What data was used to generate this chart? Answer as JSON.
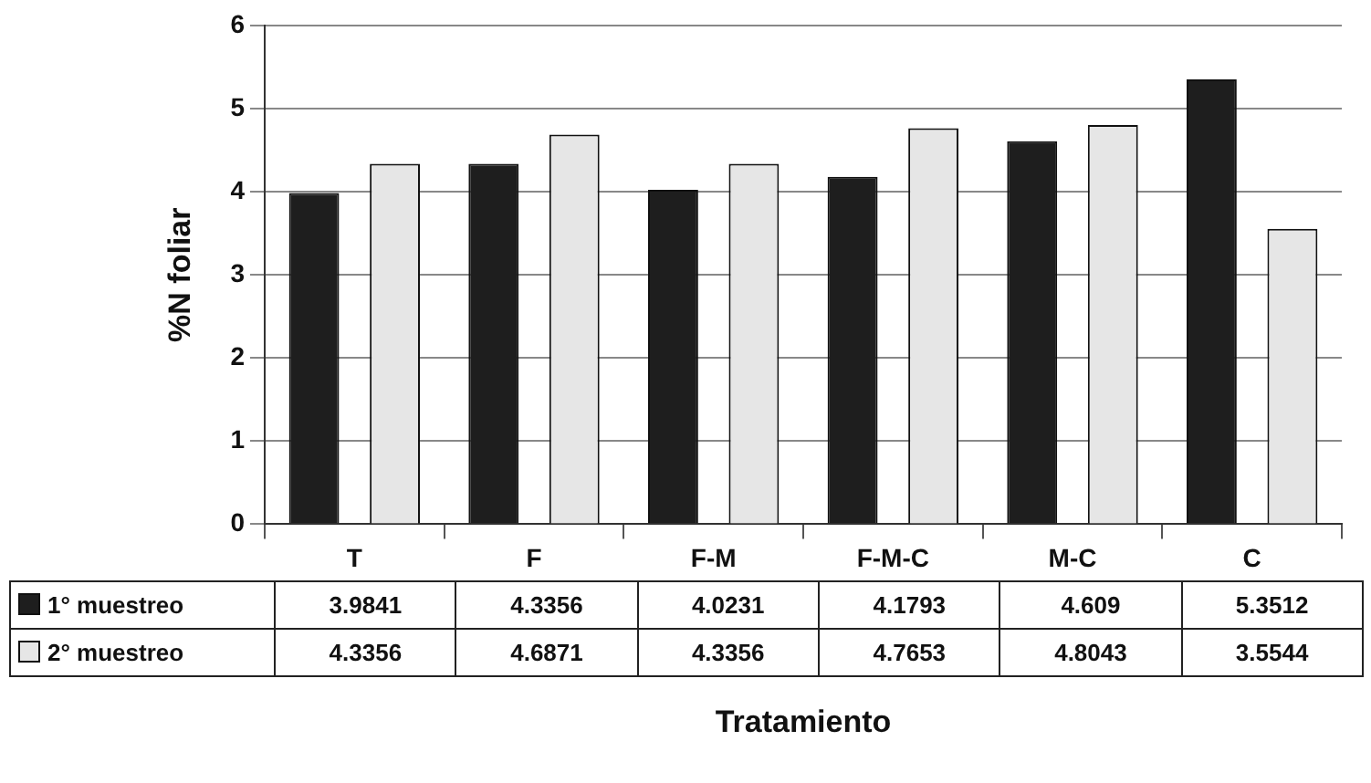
{
  "chart_data": {
    "type": "bar",
    "xlabel": "Tratamiento",
    "ylabel": "%N foliar",
    "categories": [
      "T",
      "F",
      "F-M",
      "F-M-C",
      "M-C",
      "C"
    ],
    "series": [
      {
        "name": "1° muestreo",
        "color": "#1e1e1e",
        "values": [
          3.9841,
          4.3356,
          4.0231,
          4.1793,
          4.609,
          5.3512
        ]
      },
      {
        "name": "2° muestreo",
        "color": "#e6e6e6",
        "values": [
          4.3356,
          4.6871,
          4.3356,
          4.7653,
          4.8043,
          3.5544
        ]
      }
    ],
    "ylim": [
      0,
      6
    ],
    "yticks": [
      0,
      1,
      2,
      3,
      4,
      5,
      6
    ],
    "grid": "y",
    "legend": "bottom",
    "data_labels": true
  }
}
